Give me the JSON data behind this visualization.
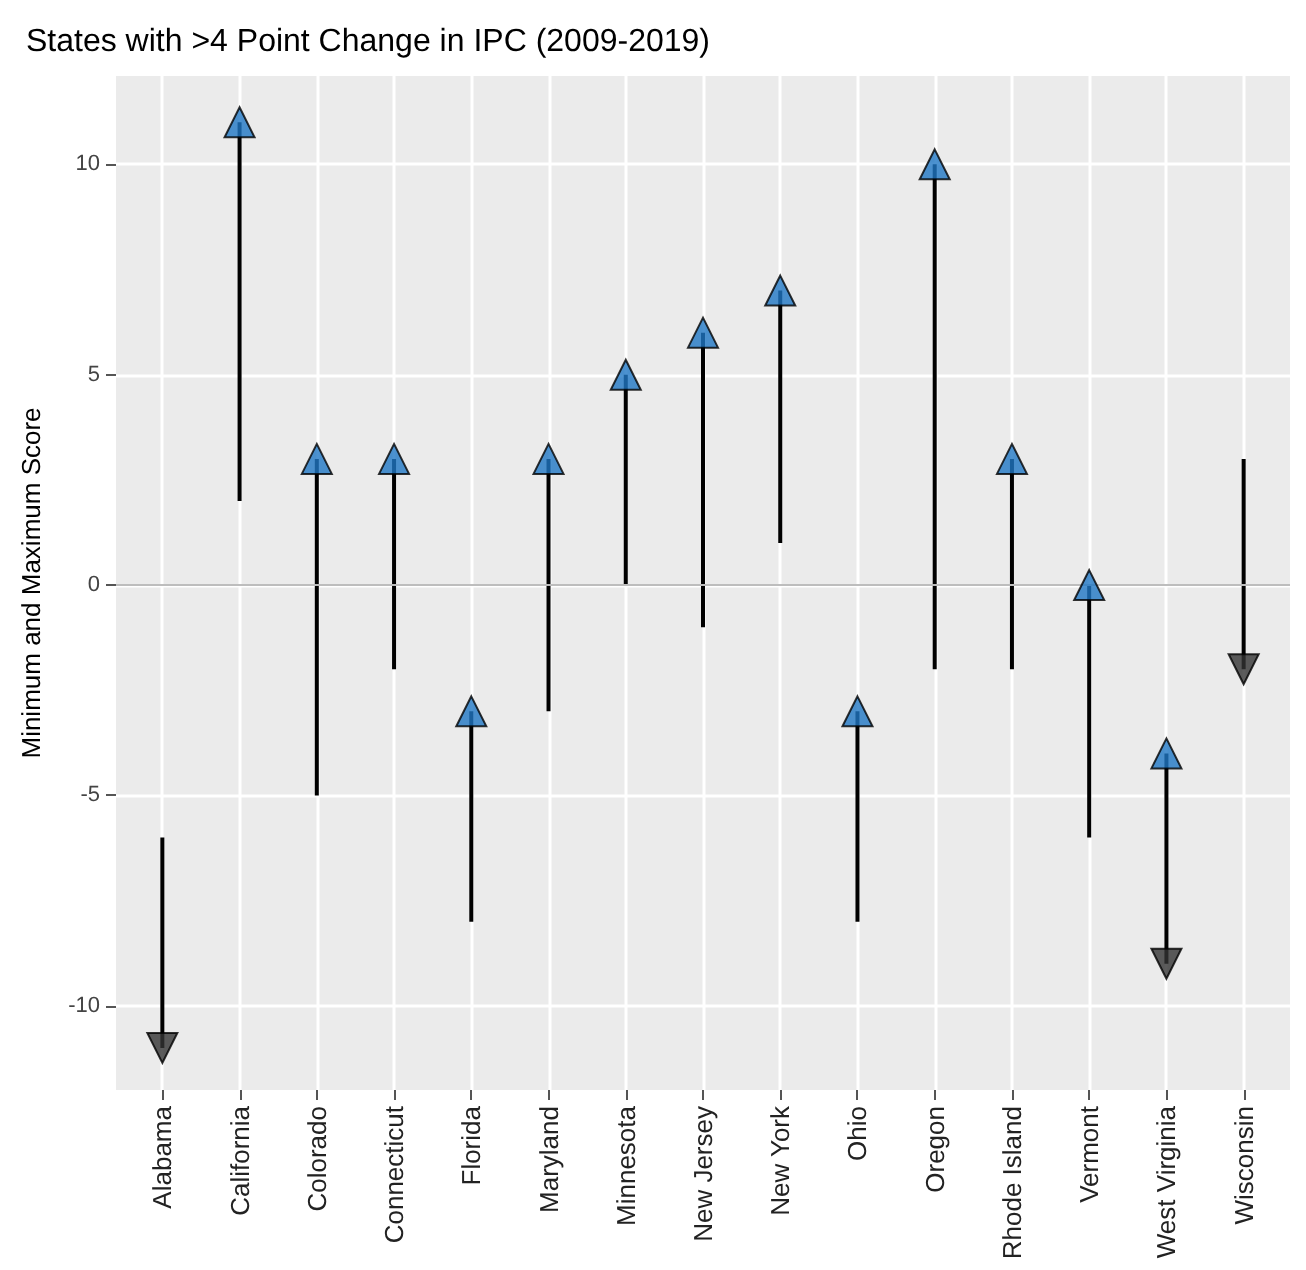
{
  "chart_data": {
    "type": "bar",
    "title": "States with >4 Point Change in IPC (2009-2019)",
    "ylabel": "Minimum and Maximum Score",
    "categories": [
      "Alabama",
      "California",
      "Colorado",
      "Connecticut",
      "Florida",
      "Maryland",
      "Minnesota",
      "New Jersey",
      "New York",
      "Ohio",
      "Oregon",
      "Rhode Island",
      "Vermont",
      "West Virginia",
      "Wisconsin"
    ],
    "base": [
      -6,
      2,
      -5,
      -2,
      -8,
      -3,
      0,
      -1,
      1,
      -8,
      -2,
      -2,
      -6,
      -4,
      3
    ],
    "values": [
      -5,
      9,
      8,
      5,
      5,
      6,
      5,
      7,
      6,
      5,
      12,
      5,
      6,
      -5,
      -5
    ],
    "color": "#000000",
    "series": [
      {
        "type": "scatter",
        "x": [
          "California",
          "Colorado",
          "Connecticut",
          "Florida",
          "Maryland",
          "Minnesota",
          "New Jersey",
          "New York",
          "Ohio",
          "Oregon",
          "Rhode Island",
          "Vermont",
          "West Virginia"
        ],
        "values": [
          11,
          3,
          3,
          -3,
          3,
          5,
          6,
          7,
          -3,
          10,
          3,
          0,
          -4
        ],
        "color": "#1f77c4"
      },
      {
        "type": "scatter",
        "x": [
          "Alabama",
          "West Virginia",
          "Wisconsin"
        ],
        "values": [
          -11,
          -9,
          -2
        ],
        "color": "#333333"
      }
    ],
    "marker": "triangle",
    "ylim": [
      -12,
      12.1
    ],
    "yticks": [
      -10,
      -5,
      0,
      5,
      10
    ],
    "grid": true,
    "ref_lines": [
      {
        "axis": "y",
        "value": 0,
        "color": "#bdbdbd"
      }
    ]
  }
}
